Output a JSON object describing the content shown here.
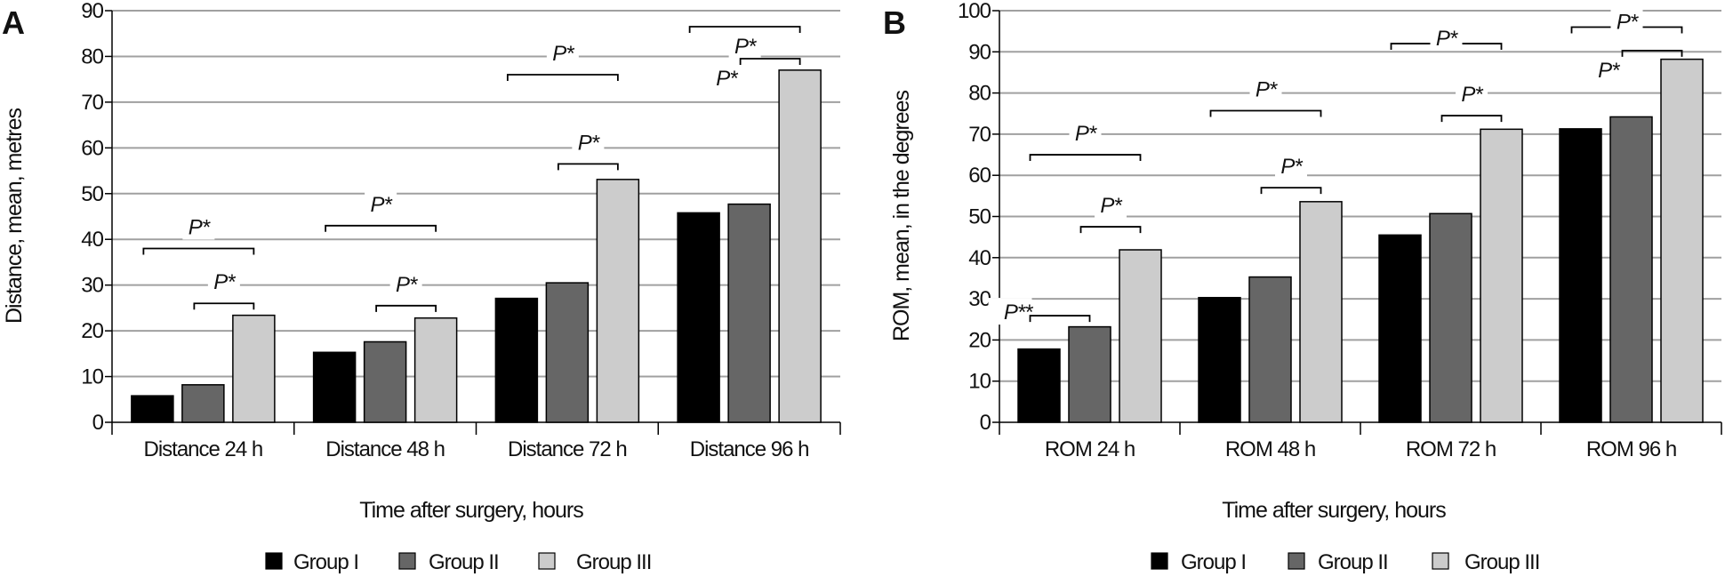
{
  "chart_data": [
    {
      "type": "bar",
      "panel_label": "A",
      "xlabel": "Time after surgery, hours",
      "ylabel": "Distance, mean, metres",
      "ylim": [
        0,
        90
      ],
      "ytick_step": 10,
      "grid": true,
      "legend_placement": "bottom",
      "categories": [
        "Distance 24 h",
        "Distance 48 h",
        "Distance 72 h",
        "Distance 96 h"
      ],
      "series": [
        {
          "name": "Group I",
          "color": "#000000",
          "values": [
            5.8,
            15.3,
            27.1,
            45.8
          ]
        },
        {
          "name": "Group II",
          "color": "#666666",
          "values": [
            8.2,
            17.6,
            30.5,
            47.7
          ]
        },
        {
          "name": "Group III",
          "color": "#cccccc",
          "values": [
            23.4,
            22.8,
            53.1,
            77.0
          ]
        }
      ],
      "annotations": [
        {
          "category": 0,
          "from": 0,
          "to": 2,
          "y": 38,
          "label": "P*",
          "pos": "above"
        },
        {
          "category": 0,
          "from": 1,
          "to": 2,
          "y": 26,
          "label": "P*",
          "pos": "above"
        },
        {
          "category": 1,
          "from": 0,
          "to": 2,
          "y": 43,
          "label": "P*",
          "pos": "above"
        },
        {
          "category": 1,
          "from": 1,
          "to": 2,
          "y": 25.5,
          "label": "P*",
          "pos": "above"
        },
        {
          "category": 2,
          "from": 0,
          "to": 2,
          "y": 76,
          "label": "P*",
          "pos": "above"
        },
        {
          "category": 2,
          "from": 1,
          "to": 2,
          "y": 56.5,
          "label": "P*",
          "pos": "above"
        },
        {
          "category": 3,
          "from": 0,
          "to": 2,
          "y": 86.5,
          "label": "P*",
          "pos": "below"
        },
        {
          "category": 3,
          "from": 1,
          "to": 2,
          "y": 79.5,
          "label": "P*",
          "pos": "below-left"
        }
      ]
    },
    {
      "type": "bar",
      "panel_label": "B",
      "xlabel": "Time after surgery, hours",
      "ylabel": "ROM, mean, in the degrees",
      "ylim": [
        0,
        100
      ],
      "ytick_step": 10,
      "grid": true,
      "legend_placement": "bottom",
      "categories": [
        "ROM 24 h",
        "ROM 48 h",
        "ROM 72 h",
        "ROM 96 h"
      ],
      "series": [
        {
          "name": "Group I",
          "color": "#000000",
          "values": [
            17.8,
            30.3,
            45.5,
            71.3
          ]
        },
        {
          "name": "Group II",
          "color": "#666666",
          "values": [
            23.2,
            35.3,
            50.7,
            74.2
          ]
        },
        {
          "name": "Group III",
          "color": "#cccccc",
          "values": [
            41.9,
            53.6,
            71.2,
            88.2
          ]
        }
      ],
      "annotations": [
        {
          "category": 0,
          "from": 0,
          "to": 1,
          "y": 25.9,
          "label": "P**",
          "pos": "left"
        },
        {
          "category": 0,
          "from": 1,
          "to": 2,
          "y": 47.5,
          "label": "P*",
          "pos": "above"
        },
        {
          "category": 0,
          "from": 0,
          "to": 2,
          "y": 65,
          "label": "P*",
          "pos": "above"
        },
        {
          "category": 1,
          "from": 1,
          "to": 2,
          "y": 57,
          "label": "P*",
          "pos": "above"
        },
        {
          "category": 1,
          "from": 0,
          "to": 2,
          "y": 75.7,
          "label": "P*",
          "pos": "above"
        },
        {
          "category": 2,
          "from": 1,
          "to": 2,
          "y": 74.5,
          "label": "P*",
          "pos": "above"
        },
        {
          "category": 2,
          "from": 0,
          "to": 2,
          "y": 92,
          "label": "P*",
          "pos": "middle"
        },
        {
          "category": 3,
          "from": 0,
          "to": 2,
          "y": 96,
          "label": "P*",
          "pos": "middle"
        },
        {
          "category": 3,
          "from": 1,
          "to": 2,
          "y": 90.3,
          "label": "P*",
          "pos": "below-left"
        }
      ]
    }
  ]
}
